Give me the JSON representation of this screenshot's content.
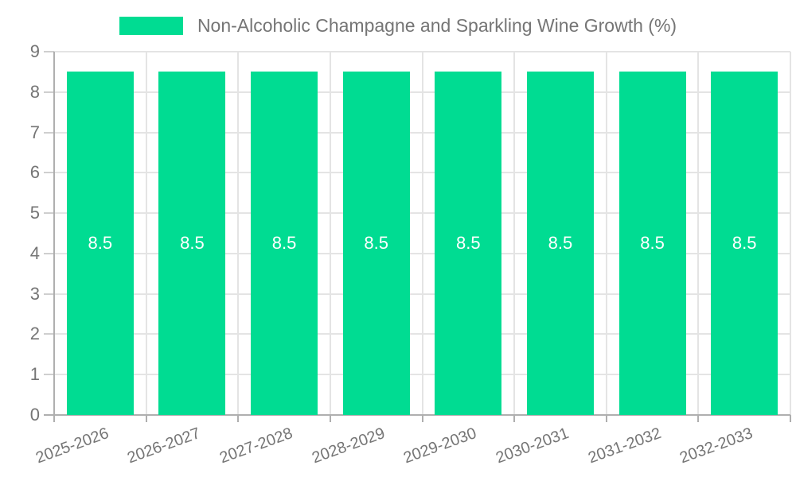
{
  "legend": {
    "items": [
      {
        "label": "Non-Alcoholic Champagne and Sparkling Wine Growth (%)",
        "color": "#00DC92"
      }
    ]
  },
  "chart_data": {
    "type": "bar",
    "categories": [
      "2025-2026",
      "2026-2027",
      "2027-2028",
      "2028-2029",
      "2029-2030",
      "2030-2031",
      "2031-2032",
      "2032-2033"
    ],
    "series": [
      {
        "name": "Non-Alcoholic Champagne and Sparkling Wine Growth (%)",
        "color": "#00DC92",
        "values": [
          8.5,
          8.5,
          8.5,
          8.5,
          8.5,
          8.5,
          8.5,
          8.5
        ]
      }
    ],
    "bar_value_labels": [
      "8.5",
      "8.5",
      "8.5",
      "8.5",
      "8.5",
      "8.5",
      "8.5",
      "8.5"
    ],
    "title": "",
    "xlabel": "",
    "ylabel": "",
    "ylim": [
      0,
      9
    ],
    "yticks": [
      0,
      1,
      2,
      3,
      4,
      5,
      6,
      7,
      8,
      9
    ],
    "grid": true,
    "legend_position": "top-center",
    "x_tick_rotation_deg": -20,
    "colors": {
      "bar": "#00DC92",
      "bar_label_text": "#FFFFFF",
      "axis_text": "#757575",
      "gridline": "#E4E4E4",
      "axis_line": "#AFAFAF",
      "background": "#FFFFFF"
    }
  }
}
